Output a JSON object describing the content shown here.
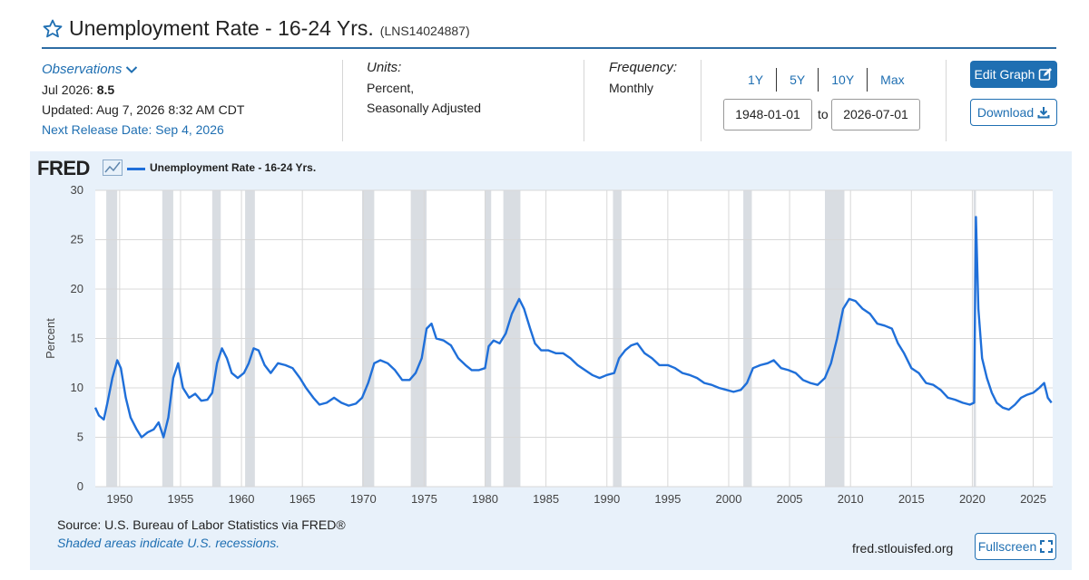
{
  "header": {
    "title": "Unemployment Rate - 16-24 Yrs.",
    "series_id": "(LNS14024887)",
    "star_icon": "star-outline-icon"
  },
  "observations": {
    "toggle_label": "Observations",
    "latest_label": "Jul 2026:",
    "latest_value": "8.5",
    "updated": "Updated: Aug 7, 2026 8:32 AM CDT",
    "next_release": "Next Release Date: Sep 4, 2026"
  },
  "units": {
    "label": "Units:",
    "line1": "Percent,",
    "line2": "Seasonally Adjusted"
  },
  "frequency": {
    "label": "Frequency:",
    "value": "Monthly"
  },
  "range": {
    "buttons": [
      "1Y",
      "5Y",
      "10Y",
      "Max"
    ],
    "start_date": "1948-01-01",
    "to_label": "to",
    "end_date": "2026-07-01"
  },
  "actions": {
    "edit_label": "Edit Graph",
    "download_label": "Download",
    "fullscreen_label": "Fullscreen"
  },
  "graph": {
    "logo": "FRED",
    "legend": "Unemployment Rate - 16-24 Yrs.",
    "source": "Source: U.S. Bureau of Labor Statistics via FRED®",
    "note": "Shaded areas indicate U.S. recessions.",
    "url": "fred.stlouisfed.org"
  },
  "colors": {
    "line": "#1f6fd9",
    "accent": "#1f6fb2",
    "recession": "#d9dde2",
    "panel": "#e8f1fa"
  },
  "chart_data": {
    "type": "line",
    "title": "",
    "xlabel": "",
    "ylabel": "Percent",
    "ylim": [
      0,
      30
    ],
    "yticks": [
      0,
      5,
      10,
      15,
      20,
      25,
      30
    ],
    "xlim": [
      1948.0,
      2026.6
    ],
    "xticks": [
      1950,
      1955,
      1960,
      1965,
      1970,
      1975,
      1980,
      1985,
      1990,
      1995,
      2000,
      2005,
      2010,
      2015,
      2020,
      2025
    ],
    "grid": true,
    "legend_position": "top-left",
    "recessions": [
      [
        1948.9,
        1949.8
      ],
      [
        1953.5,
        1954.4
      ],
      [
        1957.6,
        1958.3
      ],
      [
        1960.3,
        1961.1
      ],
      [
        1969.9,
        1970.9
      ],
      [
        1973.9,
        1975.2
      ],
      [
        1980.0,
        1980.5
      ],
      [
        1981.5,
        1982.9
      ],
      [
        1990.5,
        1991.2
      ],
      [
        2001.2,
        2001.9
      ],
      [
        2007.9,
        2009.5
      ],
      [
        2020.1,
        2020.3
      ]
    ],
    "series": [
      {
        "name": "Unemployment Rate - 16-24 Yrs.",
        "points": [
          [
            1948.0,
            8.0
          ],
          [
            1948.3,
            7.2
          ],
          [
            1948.7,
            6.8
          ],
          [
            1949.0,
            8.5
          ],
          [
            1949.4,
            11.0
          ],
          [
            1949.8,
            12.8
          ],
          [
            1950.1,
            12.0
          ],
          [
            1950.5,
            9.0
          ],
          [
            1950.9,
            7.0
          ],
          [
            1951.4,
            5.8
          ],
          [
            1951.8,
            5.0
          ],
          [
            1952.3,
            5.5
          ],
          [
            1952.8,
            5.8
          ],
          [
            1953.2,
            6.5
          ],
          [
            1953.6,
            5.0
          ],
          [
            1954.0,
            7.0
          ],
          [
            1954.4,
            11.0
          ],
          [
            1954.8,
            12.5
          ],
          [
            1955.2,
            10.0
          ],
          [
            1955.7,
            9.0
          ],
          [
            1956.2,
            9.4
          ],
          [
            1956.7,
            8.7
          ],
          [
            1957.2,
            8.8
          ],
          [
            1957.6,
            9.5
          ],
          [
            1958.0,
            12.5
          ],
          [
            1958.4,
            14.0
          ],
          [
            1958.8,
            13.0
          ],
          [
            1959.2,
            11.5
          ],
          [
            1959.7,
            11.0
          ],
          [
            1960.2,
            11.5
          ],
          [
            1960.6,
            12.5
          ],
          [
            1961.0,
            14.0
          ],
          [
            1961.4,
            13.8
          ],
          [
            1961.9,
            12.3
          ],
          [
            1962.4,
            11.5
          ],
          [
            1963.0,
            12.5
          ],
          [
            1963.6,
            12.3
          ],
          [
            1964.2,
            12.0
          ],
          [
            1964.8,
            11.0
          ],
          [
            1965.3,
            10.0
          ],
          [
            1965.9,
            9.0
          ],
          [
            1966.4,
            8.3
          ],
          [
            1967.0,
            8.5
          ],
          [
            1967.6,
            9.0
          ],
          [
            1968.2,
            8.5
          ],
          [
            1968.8,
            8.2
          ],
          [
            1969.4,
            8.4
          ],
          [
            1969.9,
            9.0
          ],
          [
            1970.4,
            10.5
          ],
          [
            1970.9,
            12.5
          ],
          [
            1971.4,
            12.8
          ],
          [
            1972.0,
            12.5
          ],
          [
            1972.6,
            11.8
          ],
          [
            1973.2,
            10.8
          ],
          [
            1973.8,
            10.8
          ],
          [
            1974.3,
            11.5
          ],
          [
            1974.8,
            13.0
          ],
          [
            1975.2,
            16.0
          ],
          [
            1975.6,
            16.5
          ],
          [
            1976.0,
            15.0
          ],
          [
            1976.6,
            14.8
          ],
          [
            1977.2,
            14.3
          ],
          [
            1977.8,
            13.0
          ],
          [
            1978.4,
            12.3
          ],
          [
            1978.9,
            11.8
          ],
          [
            1979.5,
            11.8
          ],
          [
            1980.0,
            12.0
          ],
          [
            1980.3,
            14.2
          ],
          [
            1980.7,
            14.8
          ],
          [
            1981.2,
            14.5
          ],
          [
            1981.7,
            15.5
          ],
          [
            1982.2,
            17.5
          ],
          [
            1982.8,
            19.0
          ],
          [
            1983.2,
            18.0
          ],
          [
            1983.7,
            16.0
          ],
          [
            1984.1,
            14.5
          ],
          [
            1984.6,
            13.8
          ],
          [
            1985.2,
            13.8
          ],
          [
            1985.8,
            13.5
          ],
          [
            1986.4,
            13.5
          ],
          [
            1987.0,
            13.0
          ],
          [
            1987.6,
            12.3
          ],
          [
            1988.2,
            11.8
          ],
          [
            1988.8,
            11.3
          ],
          [
            1989.4,
            11.0
          ],
          [
            1990.0,
            11.3
          ],
          [
            1990.6,
            11.5
          ],
          [
            1991.0,
            13.0
          ],
          [
            1991.5,
            13.8
          ],
          [
            1992.0,
            14.3
          ],
          [
            1992.5,
            14.5
          ],
          [
            1993.1,
            13.5
          ],
          [
            1993.7,
            13.0
          ],
          [
            1994.3,
            12.3
          ],
          [
            1995.0,
            12.3
          ],
          [
            1995.6,
            12.0
          ],
          [
            1996.2,
            11.5
          ],
          [
            1996.8,
            11.3
          ],
          [
            1997.4,
            11.0
          ],
          [
            1998.0,
            10.5
          ],
          [
            1998.6,
            10.3
          ],
          [
            1999.2,
            10.0
          ],
          [
            1999.8,
            9.8
          ],
          [
            2000.4,
            9.6
          ],
          [
            2001.0,
            9.8
          ],
          [
            2001.5,
            10.5
          ],
          [
            2002.0,
            12.0
          ],
          [
            2002.6,
            12.3
          ],
          [
            2003.2,
            12.5
          ],
          [
            2003.7,
            12.8
          ],
          [
            2004.3,
            12.0
          ],
          [
            2004.9,
            11.8
          ],
          [
            2005.5,
            11.5
          ],
          [
            2006.1,
            10.8
          ],
          [
            2006.7,
            10.5
          ],
          [
            2007.3,
            10.3
          ],
          [
            2007.9,
            11.0
          ],
          [
            2008.4,
            12.5
          ],
          [
            2008.9,
            15.0
          ],
          [
            2009.4,
            18.0
          ],
          [
            2009.9,
            19.0
          ],
          [
            2010.4,
            18.8
          ],
          [
            2011.0,
            18.0
          ],
          [
            2011.6,
            17.5
          ],
          [
            2012.2,
            16.5
          ],
          [
            2012.8,
            16.3
          ],
          [
            2013.4,
            16.0
          ],
          [
            2013.9,
            14.5
          ],
          [
            2014.4,
            13.5
          ],
          [
            2015.0,
            12.0
          ],
          [
            2015.6,
            11.5
          ],
          [
            2016.2,
            10.5
          ],
          [
            2016.8,
            10.3
          ],
          [
            2017.4,
            9.8
          ],
          [
            2018.0,
            9.0
          ],
          [
            2018.6,
            8.8
          ],
          [
            2019.2,
            8.5
          ],
          [
            2019.8,
            8.3
          ],
          [
            2020.15,
            8.5
          ],
          [
            2020.3,
            27.3
          ],
          [
            2020.5,
            18.0
          ],
          [
            2020.8,
            13.0
          ],
          [
            2021.2,
            11.0
          ],
          [
            2021.6,
            9.5
          ],
          [
            2022.0,
            8.5
          ],
          [
            2022.5,
            8.0
          ],
          [
            2023.0,
            7.8
          ],
          [
            2023.5,
            8.3
          ],
          [
            2024.0,
            9.0
          ],
          [
            2024.5,
            9.3
          ],
          [
            2025.0,
            9.5
          ],
          [
            2025.5,
            10.0
          ],
          [
            2025.9,
            10.5
          ],
          [
            2026.2,
            9.0
          ],
          [
            2026.5,
            8.5
          ]
        ]
      }
    ]
  }
}
